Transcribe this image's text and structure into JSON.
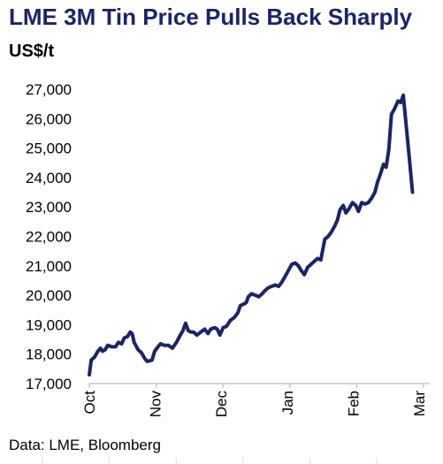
{
  "title": "LME 3M Tin Price Pulls Back Sharply",
  "unit_label": "US$/t",
  "source": "Data: LME, Bloomberg",
  "colors": {
    "title": "#1b2566",
    "line": "#1b2566",
    "axis": "#bfbfbf"
  },
  "chart_data": {
    "type": "line",
    "title": "LME 3M Tin Price Pulls Back Sharply",
    "ylabel": "US$/t",
    "xlabel": "",
    "ylim": [
      17000,
      27000
    ],
    "xlim": [
      0,
      5
    ],
    "grid": false,
    "legend": "none",
    "y_ticks": [
      17000,
      18000,
      19000,
      20000,
      21000,
      22000,
      23000,
      24000,
      25000,
      26000,
      27000
    ],
    "y_tick_labels": [
      "17,000",
      "18,000",
      "19,000",
      "20,000",
      "21,000",
      "22,000",
      "23,000",
      "24,000",
      "25,000",
      "26,000",
      "27,000"
    ],
    "x_ticks": [
      0,
      1,
      2,
      3,
      4,
      5
    ],
    "x_tick_labels": [
      "Oct",
      "Nov",
      "Dec",
      "Jan",
      "Feb",
      "Mar"
    ],
    "series": [
      {
        "values": [
          [
            0.0,
            17300
          ],
          [
            0.03,
            17800
          ],
          [
            0.08,
            17900
          ],
          [
            0.13,
            18100
          ],
          [
            0.17,
            18200
          ],
          [
            0.2,
            18100
          ],
          [
            0.24,
            18150
          ],
          [
            0.28,
            18300
          ],
          [
            0.34,
            18250
          ],
          [
            0.4,
            18250
          ],
          [
            0.44,
            18400
          ],
          [
            0.49,
            18350
          ],
          [
            0.53,
            18550
          ],
          [
            0.58,
            18600
          ],
          [
            0.62,
            18750
          ],
          [
            0.65,
            18700
          ],
          [
            0.68,
            18400
          ],
          [
            0.74,
            18150
          ],
          [
            0.79,
            18050
          ],
          [
            0.84,
            17850
          ],
          [
            0.88,
            17750
          ],
          [
            0.95,
            17800
          ],
          [
            0.99,
            18100
          ],
          [
            1.04,
            18250
          ],
          [
            1.08,
            18350
          ],
          [
            1.14,
            18300
          ],
          [
            1.2,
            18300
          ],
          [
            1.26,
            18200
          ],
          [
            1.32,
            18400
          ],
          [
            1.38,
            18650
          ],
          [
            1.42,
            18800
          ],
          [
            1.46,
            19050
          ],
          [
            1.5,
            18800
          ],
          [
            1.54,
            18750
          ],
          [
            1.58,
            18750
          ],
          [
            1.63,
            18650
          ],
          [
            1.69,
            18750
          ],
          [
            1.75,
            18850
          ],
          [
            1.8,
            18700
          ],
          [
            1.84,
            18850
          ],
          [
            1.9,
            18900
          ],
          [
            1.94,
            18850
          ],
          [
            1.98,
            18650
          ],
          [
            2.03,
            18900
          ],
          [
            2.08,
            18950
          ],
          [
            2.14,
            19150
          ],
          [
            2.2,
            19250
          ],
          [
            2.25,
            19400
          ],
          [
            2.29,
            19650
          ],
          [
            2.34,
            19700
          ],
          [
            2.38,
            19750
          ],
          [
            2.41,
            19950
          ],
          [
            2.46,
            20050
          ],
          [
            2.52,
            20000
          ],
          [
            2.57,
            19950
          ],
          [
            2.62,
            20050
          ],
          [
            2.66,
            20150
          ],
          [
            2.71,
            20250
          ],
          [
            2.76,
            20300
          ],
          [
            2.82,
            20350
          ],
          [
            2.87,
            20300
          ],
          [
            2.92,
            20450
          ],
          [
            2.97,
            20650
          ],
          [
            3.02,
            20850
          ],
          [
            3.07,
            21050
          ],
          [
            3.12,
            21100
          ],
          [
            3.17,
            21000
          ],
          [
            3.21,
            20850
          ],
          [
            3.26,
            20700
          ],
          [
            3.31,
            20950
          ],
          [
            3.36,
            21050
          ],
          [
            3.41,
            21150
          ],
          [
            3.46,
            21250
          ],
          [
            3.51,
            21200
          ],
          [
            3.57,
            21900
          ],
          [
            3.62,
            22000
          ],
          [
            3.67,
            22150
          ],
          [
            3.72,
            22350
          ],
          [
            3.76,
            22550
          ],
          [
            3.8,
            22900
          ],
          [
            3.85,
            23050
          ],
          [
            3.89,
            22800
          ],
          [
            3.94,
            22950
          ],
          [
            3.99,
            23150
          ],
          [
            4.04,
            23050
          ],
          [
            4.08,
            22850
          ],
          [
            4.13,
            23150
          ],
          [
            4.18,
            23100
          ],
          [
            4.23,
            23150
          ],
          [
            4.28,
            23300
          ],
          [
            4.33,
            23500
          ],
          [
            4.37,
            23850
          ],
          [
            4.41,
            24100
          ],
          [
            4.46,
            24450
          ],
          [
            4.5,
            24350
          ],
          [
            4.54,
            24950
          ],
          [
            4.58,
            26150
          ],
          [
            4.63,
            26350
          ],
          [
            4.68,
            26600
          ],
          [
            4.72,
            26550
          ],
          [
            4.76,
            26800
          ],
          [
            4.8,
            25850
          ],
          [
            4.85,
            24700
          ],
          [
            4.9,
            23500
          ]
        ]
      }
    ]
  }
}
